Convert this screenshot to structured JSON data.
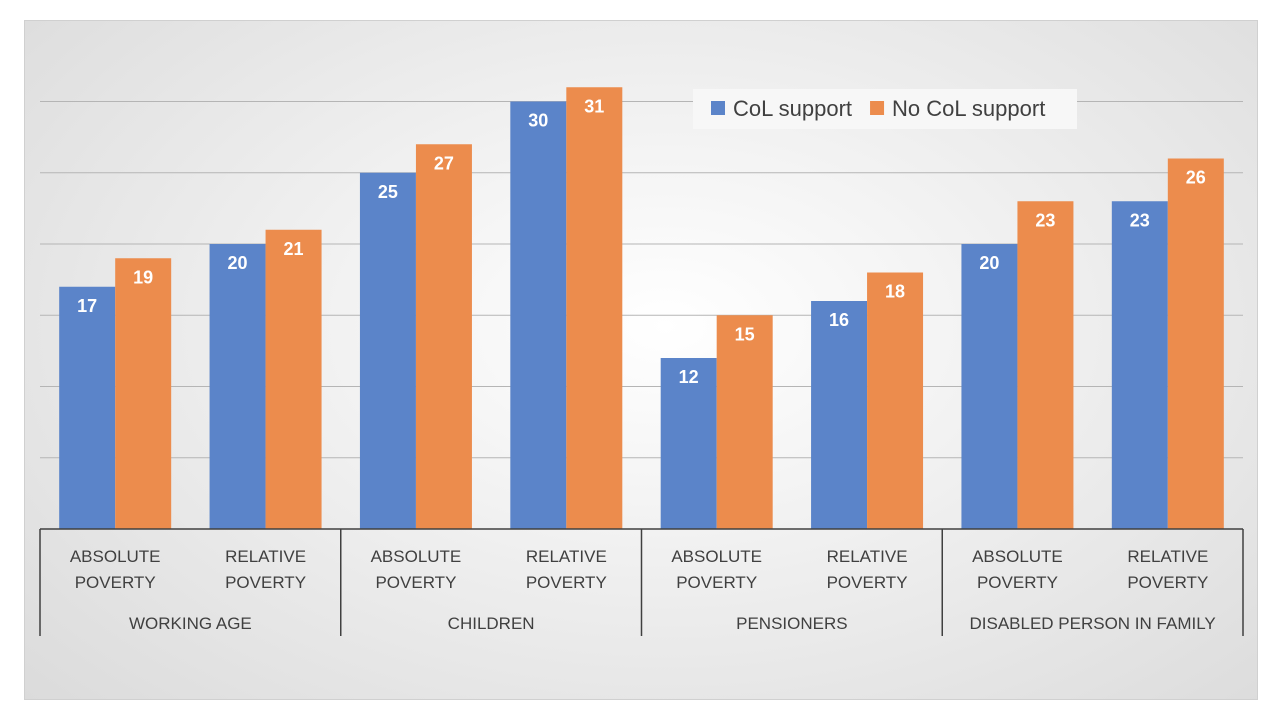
{
  "chart_data": {
    "type": "bar",
    "title": "",
    "xlabel": "",
    "ylabel": "",
    "ylim": [
      0,
      36
    ],
    "grid": true,
    "legend_position": "top-right",
    "groups": [
      {
        "label": "WORKING AGE",
        "categories": [
          [
            "ABSOLUTE",
            "POVERTY"
          ],
          [
            "RELATIVE",
            "POVERTY"
          ]
        ]
      },
      {
        "label": "CHILDREN",
        "categories": [
          [
            "ABSOLUTE",
            "POVERTY"
          ],
          [
            "RELATIVE",
            "POVERTY"
          ]
        ]
      },
      {
        "label": "PENSIONERS",
        "categories": [
          [
            "ABSOLUTE",
            "POVERTY"
          ],
          [
            "RELATIVE",
            "POVERTY"
          ]
        ]
      },
      {
        "label": "DISABLED PERSON IN FAMILY",
        "categories": [
          [
            "ABSOLUTE",
            "POVERTY"
          ],
          [
            "RELATIVE",
            "POVERTY"
          ]
        ]
      }
    ],
    "series": [
      {
        "name": "CoL support",
        "color": "#5b84c9",
        "values": [
          17,
          20,
          25,
          30,
          12,
          16,
          20,
          23
        ]
      },
      {
        "name": "No CoL support",
        "color": "#ec8c4d",
        "values": [
          19,
          21,
          27,
          31,
          15,
          18,
          23,
          26
        ]
      }
    ]
  }
}
